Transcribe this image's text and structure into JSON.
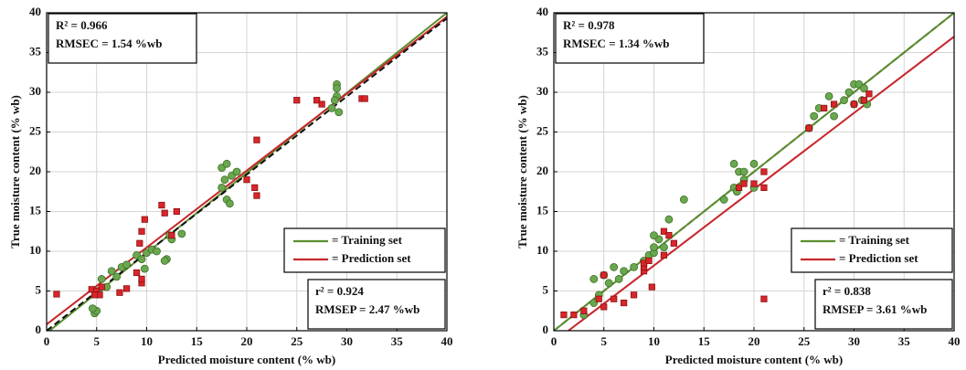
{
  "chart_data": [
    {
      "type": "scatter",
      "xlabel": "Predicted moisture content (% wb)",
      "ylabel": "True moisture content (% wb)",
      "xlim": [
        0,
        40
      ],
      "ylim": [
        0,
        40
      ],
      "xticks": [
        0,
        5,
        10,
        15,
        20,
        25,
        30,
        35,
        40
      ],
      "yticks": [
        0,
        5,
        10,
        15,
        20,
        25,
        30,
        35,
        40
      ],
      "grid": true,
      "legend": "lower right",
      "annotations": [
        {
          "corner": "upper left",
          "lines": [
            "R² = 0.966",
            "RMSEC = 1.54 %wb"
          ]
        },
        {
          "corner": "lower right",
          "lines": [
            "r² = 0.924",
            "RMSEP = 2.47 %wb"
          ]
        }
      ],
      "series": [
        {
          "mode": "markers",
          "marker": "circle",
          "color": "#6aa84f",
          "x": [
            4.8,
            5,
            4.6,
            5.2,
            5.5,
            6,
            6.5,
            7,
            7.5,
            8,
            9,
            9.5,
            10,
            10.5,
            11,
            12,
            12.3,
            12.5,
            13.5,
            11.8,
            9.8,
            17.5,
            18,
            17.8,
            17.5,
            18,
            18.3,
            18.5,
            19,
            28.5,
            29,
            29,
            29.2,
            29,
            28.8
          ],
          "values": [
            2.2,
            2.5,
            2.8,
            5,
            6.5,
            5.5,
            7.5,
            6.8,
            8,
            8.3,
            9.5,
            9,
            9.8,
            10.2,
            10,
            9,
            12,
            11.5,
            12.2,
            8.8,
            7.8,
            20.5,
            21,
            19,
            18,
            16.5,
            16,
            19.5,
            20,
            28,
            29.5,
            31,
            27.5,
            30.5,
            29
          ]
        },
        {
          "mode": "markers",
          "marker": "square",
          "color": "#d9262b",
          "x": [
            1,
            4.5,
            5,
            5.3,
            5.5,
            4.8,
            7.3,
            8,
            9,
            9.5,
            9.5,
            9.3,
            9.5,
            9.8,
            11.5,
            11.8,
            12.5,
            13,
            20,
            21,
            20.8,
            21,
            25,
            27,
            27.5,
            31.5,
            31.8
          ],
          "values": [
            4.6,
            5.2,
            5,
            4.5,
            5.5,
            4.5,
            4.8,
            5.3,
            7.3,
            6,
            6.5,
            11,
            12.5,
            14,
            15.8,
            14.8,
            12,
            15,
            19,
            17,
            18,
            24,
            29,
            29,
            28.5,
            29.2,
            29.2
          ]
        },
        {
          "mode": "line",
          "name": "= Training set",
          "color": "#5b8f2e",
          "x": [
            0,
            40
          ],
          "values": [
            -0.3,
            40
          ]
        },
        {
          "mode": "line",
          "name": "= Prediction set",
          "color": "#c8262b",
          "x": [
            0,
            40
          ],
          "values": [
            0.8,
            39.5
          ]
        },
        {
          "mode": "line",
          "dash": true,
          "color": "#111111",
          "x": [
            0,
            40
          ],
          "values": [
            0,
            39.3
          ]
        }
      ]
    },
    {
      "type": "scatter",
      "xlabel": "Predicted moisture content (% wb)",
      "ylabel": "True moisture content (% wb)",
      "xlim": [
        0,
        40
      ],
      "ylim": [
        0,
        40
      ],
      "xticks": [
        0,
        5,
        10,
        15,
        20,
        25,
        30,
        35,
        40
      ],
      "yticks": [
        0,
        5,
        10,
        15,
        20,
        25,
        30,
        35,
        40
      ],
      "grid": true,
      "legend": "lower right",
      "annotations": [
        {
          "corner": "upper left",
          "lines": [
            "R² = 0.978",
            "RMSEC = 1.34 %wb"
          ]
        },
        {
          "corner": "lower right",
          "lines": [
            "r² = 0.838",
            "RMSEP = 3.61 %wb"
          ]
        }
      ],
      "series": [
        {
          "mode": "markers",
          "marker": "circle",
          "color": "#6aa84f",
          "x": [
            3,
            4,
            4.5,
            4,
            5,
            5.5,
            6,
            6.5,
            7,
            8,
            9,
            9.5,
            10,
            10,
            10.5,
            10,
            11,
            11.5,
            13,
            17,
            18,
            18.3,
            18.5,
            19,
            18,
            19,
            20,
            20,
            25.5,
            26,
            26.5,
            27.5,
            28,
            29,
            29.5,
            30,
            30.5,
            31,
            31.3,
            30.8,
            30
          ],
          "values": [
            2,
            3.5,
            4.5,
            6.5,
            7,
            6,
            8,
            6.5,
            7.5,
            8,
            8.8,
            9.5,
            9.8,
            10.5,
            11.5,
            12,
            10.5,
            14,
            16.5,
            16.5,
            18,
            17.5,
            20,
            20,
            21,
            19,
            21,
            18,
            25.5,
            27,
            28,
            29.5,
            27,
            29,
            30,
            31,
            31,
            30.5,
            28.5,
            29,
            28.5
          ]
        },
        {
          "mode": "markers",
          "marker": "square",
          "color": "#d9262b",
          "x": [
            1,
            2,
            3,
            4.5,
            5,
            5,
            6,
            7,
            8,
            9,
            9,
            9,
            9.5,
            9.8,
            11,
            11,
            11.5,
            12,
            18.5,
            19,
            20,
            21,
            21,
            21,
            25.5,
            27,
            28,
            30,
            31.5,
            31
          ],
          "values": [
            2,
            2,
            2.5,
            4,
            3,
            7,
            4,
            3.5,
            4.5,
            7.5,
            8,
            8.5,
            8.8,
            5.5,
            9.5,
            12.5,
            12,
            11,
            18,
            18.5,
            18.5,
            18,
            20,
            4,
            25.5,
            28,
            28.5,
            28.5,
            29.8,
            29
          ]
        },
        {
          "mode": "line",
          "dash": true,
          "color": "#111111",
          "x": [
            0,
            40
          ],
          "values": [
            0,
            40
          ]
        },
        {
          "mode": "line",
          "name": "= Training set",
          "color": "#5b8f2e",
          "x": [
            0,
            40
          ],
          "values": [
            0,
            40
          ]
        },
        {
          "mode": "line",
          "name": "= Prediction set",
          "color": "#c8262b",
          "x": [
            0,
            40
          ],
          "values": [
            -1.4,
            37
          ]
        }
      ]
    }
  ]
}
